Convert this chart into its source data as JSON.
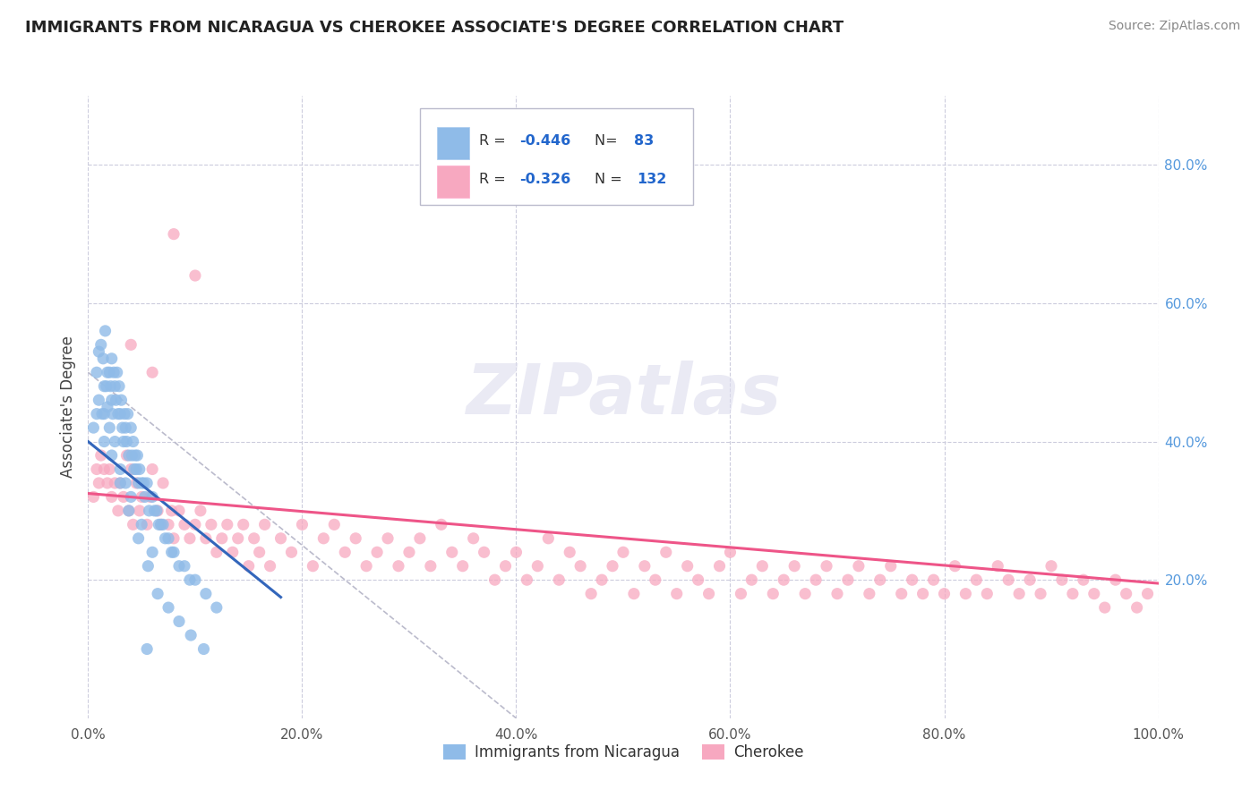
{
  "title": "IMMIGRANTS FROM NICARAGUA VS CHEROKEE ASSOCIATE'S DEGREE CORRELATION CHART",
  "source": "Source: ZipAtlas.com",
  "ylabel": "Associate's Degree",
  "watermark": "ZIPatlas",
  "legend_label1": "Immigrants from Nicaragua",
  "legend_label2": "Cherokee",
  "r1": -0.446,
  "n1": 83,
  "r2": -0.326,
  "n2": 132,
  "xlim": [
    0.0,
    1.0
  ],
  "ylim": [
    0.0,
    0.9
  ],
  "xticks": [
    0.0,
    0.2,
    0.4,
    0.6,
    0.8,
    1.0
  ],
  "xticklabels": [
    "0.0%",
    "20.0%",
    "40.0%",
    "60.0%",
    "80.0%",
    "100.0%"
  ],
  "ytick_right_vals": [
    0.2,
    0.4,
    0.6,
    0.8
  ],
  "ytick_right_labels": [
    "20.0%",
    "40.0%",
    "60.0%",
    "80.0%"
  ],
  "color_blue": "#8FBBE8",
  "color_pink": "#F7A8C0",
  "line_blue": "#3366BB",
  "line_pink": "#EE5588",
  "line_gray": "#BBBBCC",
  "scatter1_x": [
    0.005,
    0.008,
    0.01,
    0.012,
    0.014,
    0.015,
    0.015,
    0.016,
    0.018,
    0.018,
    0.02,
    0.021,
    0.022,
    0.022,
    0.023,
    0.024,
    0.025,
    0.026,
    0.027,
    0.028,
    0.029,
    0.03,
    0.031,
    0.032,
    0.033,
    0.034,
    0.035,
    0.036,
    0.037,
    0.038,
    0.04,
    0.041,
    0.042,
    0.043,
    0.044,
    0.045,
    0.046,
    0.047,
    0.048,
    0.05,
    0.052,
    0.053,
    0.055,
    0.057,
    0.06,
    0.062,
    0.064,
    0.066,
    0.068,
    0.07,
    0.072,
    0.075,
    0.078,
    0.08,
    0.085,
    0.09,
    0.095,
    0.1,
    0.11,
    0.12,
    0.01,
    0.013,
    0.017,
    0.02,
    0.025,
    0.03,
    0.035,
    0.04,
    0.05,
    0.06,
    0.008,
    0.015,
    0.022,
    0.03,
    0.038,
    0.047,
    0.056,
    0.065,
    0.075,
    0.085,
    0.096,
    0.108,
    0.055
  ],
  "scatter1_y": [
    0.42,
    0.5,
    0.53,
    0.54,
    0.52,
    0.48,
    0.44,
    0.56,
    0.5,
    0.45,
    0.5,
    0.48,
    0.52,
    0.46,
    0.44,
    0.5,
    0.48,
    0.46,
    0.5,
    0.44,
    0.48,
    0.44,
    0.46,
    0.42,
    0.4,
    0.44,
    0.42,
    0.4,
    0.44,
    0.38,
    0.42,
    0.38,
    0.4,
    0.36,
    0.38,
    0.36,
    0.38,
    0.34,
    0.36,
    0.34,
    0.34,
    0.32,
    0.34,
    0.3,
    0.32,
    0.3,
    0.3,
    0.28,
    0.28,
    0.28,
    0.26,
    0.26,
    0.24,
    0.24,
    0.22,
    0.22,
    0.2,
    0.2,
    0.18,
    0.16,
    0.46,
    0.44,
    0.48,
    0.42,
    0.4,
    0.36,
    0.34,
    0.32,
    0.28,
    0.24,
    0.44,
    0.4,
    0.38,
    0.34,
    0.3,
    0.26,
    0.22,
    0.18,
    0.16,
    0.14,
    0.12,
    0.1,
    0.1
  ],
  "scatter2_x": [
    0.005,
    0.008,
    0.01,
    0.012,
    0.015,
    0.018,
    0.02,
    0.022,
    0.025,
    0.028,
    0.03,
    0.033,
    0.036,
    0.038,
    0.04,
    0.042,
    0.045,
    0.048,
    0.05,
    0.055,
    0.058,
    0.06,
    0.065,
    0.068,
    0.07,
    0.075,
    0.078,
    0.08,
    0.085,
    0.09,
    0.095,
    0.1,
    0.105,
    0.11,
    0.115,
    0.12,
    0.125,
    0.13,
    0.135,
    0.14,
    0.145,
    0.15,
    0.155,
    0.16,
    0.165,
    0.17,
    0.18,
    0.19,
    0.2,
    0.21,
    0.22,
    0.23,
    0.24,
    0.25,
    0.26,
    0.27,
    0.28,
    0.29,
    0.3,
    0.31,
    0.32,
    0.33,
    0.34,
    0.35,
    0.36,
    0.37,
    0.38,
    0.39,
    0.4,
    0.41,
    0.42,
    0.43,
    0.44,
    0.45,
    0.46,
    0.47,
    0.48,
    0.49,
    0.5,
    0.51,
    0.52,
    0.53,
    0.54,
    0.55,
    0.56,
    0.57,
    0.58,
    0.59,
    0.6,
    0.61,
    0.62,
    0.63,
    0.64,
    0.65,
    0.66,
    0.67,
    0.68,
    0.69,
    0.7,
    0.71,
    0.72,
    0.73,
    0.74,
    0.75,
    0.76,
    0.77,
    0.78,
    0.79,
    0.8,
    0.81,
    0.82,
    0.83,
    0.84,
    0.85,
    0.86,
    0.87,
    0.88,
    0.89,
    0.9,
    0.91,
    0.92,
    0.93,
    0.94,
    0.95,
    0.96,
    0.97,
    0.98,
    0.99,
    0.04,
    0.06,
    0.08,
    0.1
  ],
  "scatter2_y": [
    0.32,
    0.36,
    0.34,
    0.38,
    0.36,
    0.34,
    0.36,
    0.32,
    0.34,
    0.3,
    0.34,
    0.32,
    0.38,
    0.3,
    0.36,
    0.28,
    0.34,
    0.3,
    0.32,
    0.28,
    0.32,
    0.36,
    0.3,
    0.28,
    0.34,
    0.28,
    0.3,
    0.26,
    0.3,
    0.28,
    0.26,
    0.28,
    0.3,
    0.26,
    0.28,
    0.24,
    0.26,
    0.28,
    0.24,
    0.26,
    0.28,
    0.22,
    0.26,
    0.24,
    0.28,
    0.22,
    0.26,
    0.24,
    0.28,
    0.22,
    0.26,
    0.28,
    0.24,
    0.26,
    0.22,
    0.24,
    0.26,
    0.22,
    0.24,
    0.26,
    0.22,
    0.28,
    0.24,
    0.22,
    0.26,
    0.24,
    0.2,
    0.22,
    0.24,
    0.2,
    0.22,
    0.26,
    0.2,
    0.24,
    0.22,
    0.18,
    0.2,
    0.22,
    0.24,
    0.18,
    0.22,
    0.2,
    0.24,
    0.18,
    0.22,
    0.2,
    0.18,
    0.22,
    0.24,
    0.18,
    0.2,
    0.22,
    0.18,
    0.2,
    0.22,
    0.18,
    0.2,
    0.22,
    0.18,
    0.2,
    0.22,
    0.18,
    0.2,
    0.22,
    0.18,
    0.2,
    0.18,
    0.2,
    0.18,
    0.22,
    0.18,
    0.2,
    0.18,
    0.22,
    0.2,
    0.18,
    0.2,
    0.18,
    0.22,
    0.2,
    0.18,
    0.2,
    0.18,
    0.16,
    0.2,
    0.18,
    0.16,
    0.18,
    0.54,
    0.5,
    0.7,
    0.64
  ],
  "blue_trendline_x": [
    0.0,
    0.18
  ],
  "blue_trendline_y": [
    0.4,
    0.175
  ],
  "pink_trendline_x": [
    0.0,
    1.0
  ],
  "pink_trendline_y": [
    0.325,
    0.195
  ],
  "gray_line_x": [
    0.0,
    0.4
  ],
  "gray_line_y": [
    0.5,
    0.0
  ]
}
